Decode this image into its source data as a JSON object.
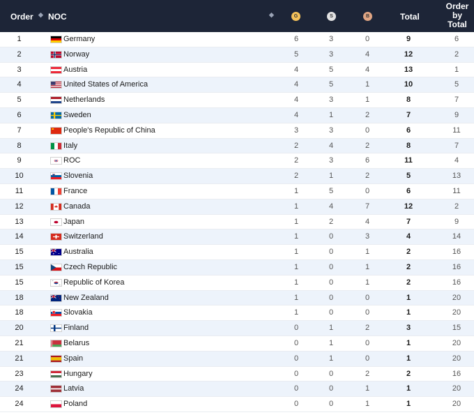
{
  "header": {
    "order": "Order",
    "noc": "NOC",
    "gold_badge": "G",
    "silver_badge": "S",
    "bronze_badge": "B",
    "total": "Total",
    "rank_total_line1": "Order",
    "rank_total_line2": "by",
    "rank_total_line3": "Total"
  },
  "rows": [
    {
      "order": "1",
      "noc": "Germany",
      "flag": "germany",
      "gold": "6",
      "silver": "3",
      "bronze": "0",
      "total": "9",
      "rank_total": "6"
    },
    {
      "order": "2",
      "noc": "Norway",
      "flag": "norway",
      "gold": "5",
      "silver": "3",
      "bronze": "4",
      "total": "12",
      "rank_total": "2"
    },
    {
      "order": "3",
      "noc": "Austria",
      "flag": "austria",
      "gold": "4",
      "silver": "5",
      "bronze": "4",
      "total": "13",
      "rank_total": "1"
    },
    {
      "order": "4",
      "noc": "United States of America",
      "flag": "usa",
      "gold": "4",
      "silver": "5",
      "bronze": "1",
      "total": "10",
      "rank_total": "5"
    },
    {
      "order": "5",
      "noc": "Netherlands",
      "flag": "netherlands",
      "gold": "4",
      "silver": "3",
      "bronze": "1",
      "total": "8",
      "rank_total": "7"
    },
    {
      "order": "6",
      "noc": "Sweden",
      "flag": "sweden",
      "gold": "4",
      "silver": "1",
      "bronze": "2",
      "total": "7",
      "rank_total": "9"
    },
    {
      "order": "7",
      "noc": "People's Republic of China",
      "flag": "china",
      "gold": "3",
      "silver": "3",
      "bronze": "0",
      "total": "6",
      "rank_total": "11"
    },
    {
      "order": "8",
      "noc": "Italy",
      "flag": "italy",
      "gold": "2",
      "silver": "4",
      "bronze": "2",
      "total": "8",
      "rank_total": "7"
    },
    {
      "order": "9",
      "noc": "ROC",
      "flag": "roc",
      "gold": "2",
      "silver": "3",
      "bronze": "6",
      "total": "11",
      "rank_total": "4"
    },
    {
      "order": "10",
      "noc": "Slovenia",
      "flag": "slovenia",
      "gold": "2",
      "silver": "1",
      "bronze": "2",
      "total": "5",
      "rank_total": "13"
    },
    {
      "order": "11",
      "noc": "France",
      "flag": "france",
      "gold": "1",
      "silver": "5",
      "bronze": "0",
      "total": "6",
      "rank_total": "11"
    },
    {
      "order": "12",
      "noc": "Canada",
      "flag": "canada",
      "gold": "1",
      "silver": "4",
      "bronze": "7",
      "total": "12",
      "rank_total": "2"
    },
    {
      "order": "13",
      "noc": "Japan",
      "flag": "japan",
      "gold": "1",
      "silver": "2",
      "bronze": "4",
      "total": "7",
      "rank_total": "9"
    },
    {
      "order": "14",
      "noc": "Switzerland",
      "flag": "switzerland",
      "gold": "1",
      "silver": "0",
      "bronze": "3",
      "total": "4",
      "rank_total": "14"
    },
    {
      "order": "15",
      "noc": "Australia",
      "flag": "australia",
      "gold": "1",
      "silver": "0",
      "bronze": "1",
      "total": "2",
      "rank_total": "16"
    },
    {
      "order": "15",
      "noc": "Czech Republic",
      "flag": "czech",
      "gold": "1",
      "silver": "0",
      "bronze": "1",
      "total": "2",
      "rank_total": "16"
    },
    {
      "order": "15",
      "noc": "Republic of Korea",
      "flag": "korea",
      "gold": "1",
      "silver": "0",
      "bronze": "1",
      "total": "2",
      "rank_total": "16"
    },
    {
      "order": "18",
      "noc": "New Zealand",
      "flag": "newzealand",
      "gold": "1",
      "silver": "0",
      "bronze": "0",
      "total": "1",
      "rank_total": "20"
    },
    {
      "order": "18",
      "noc": "Slovakia",
      "flag": "slovakia",
      "gold": "1",
      "silver": "0",
      "bronze": "0",
      "total": "1",
      "rank_total": "20"
    },
    {
      "order": "20",
      "noc": "Finland",
      "flag": "finland",
      "gold": "0",
      "silver": "1",
      "bronze": "2",
      "total": "3",
      "rank_total": "15"
    },
    {
      "order": "21",
      "noc": "Belarus",
      "flag": "belarus",
      "gold": "0",
      "silver": "1",
      "bronze": "0",
      "total": "1",
      "rank_total": "20"
    },
    {
      "order": "21",
      "noc": "Spain",
      "flag": "spain",
      "gold": "0",
      "silver": "1",
      "bronze": "0",
      "total": "1",
      "rank_total": "20"
    },
    {
      "order": "23",
      "noc": "Hungary",
      "flag": "hungary",
      "gold": "0",
      "silver": "0",
      "bronze": "2",
      "total": "2",
      "rank_total": "16"
    },
    {
      "order": "24",
      "noc": "Latvia",
      "flag": "latvia",
      "gold": "0",
      "silver": "0",
      "bronze": "1",
      "total": "1",
      "rank_total": "20"
    },
    {
      "order": "24",
      "noc": "Poland",
      "flag": "poland",
      "gold": "0",
      "silver": "0",
      "bronze": "1",
      "total": "1",
      "rank_total": "20"
    }
  ]
}
